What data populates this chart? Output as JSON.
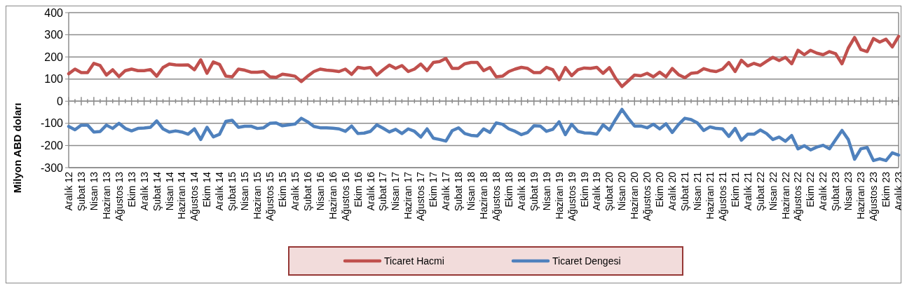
{
  "chart_data": {
    "type": "line",
    "ylabel": "Milyon ABD doları",
    "categories": [
      "Aralık 12",
      null,
      "Şubat 13",
      null,
      "Nisan 13",
      null,
      "Haziran 13",
      null,
      "Ağustos 13",
      null,
      "Ekim 13",
      null,
      "Aralık 13",
      null,
      "Şubat 14",
      null,
      "Nisan 14",
      null,
      "Haziran 14",
      null,
      "Ağustos 14",
      null,
      "Ekim 14",
      null,
      "Aralık 14",
      null,
      "Şubat 15",
      null,
      "Nisan 15",
      null,
      "Haziran 15",
      null,
      "Ağustos 15",
      null,
      "Ekim 15",
      null,
      "Aralık 15",
      null,
      "Şubat 16",
      null,
      "Nisan 16",
      null,
      "Haziran 16",
      null,
      "Ağustos 16",
      null,
      "Ekim 16",
      null,
      "Aralık 16",
      null,
      "Şubat 17",
      null,
      "Nisan 17",
      null,
      "Haziran 17",
      null,
      "Ağustos 17",
      null,
      "Ekim 17",
      null,
      "Aralık 17",
      null,
      "Şubat 18",
      null,
      "Nisan 18",
      null,
      "Haziran 18",
      null,
      "Ağustos 18",
      null,
      "Ekim 18",
      null,
      "Aralık 18",
      null,
      "Şubat 19",
      null,
      "Nisan 19",
      null,
      "Haziran 19",
      null,
      "Ağustos 19",
      null,
      "Ekim 19",
      null,
      "Aralık 19",
      null,
      "Şubat 20",
      null,
      "Nisan 20",
      null,
      "Haziran 20",
      null,
      "Ağustos 20",
      null,
      "Ekim 20",
      null,
      "Aralık 20",
      null,
      "Şubat 21",
      null,
      "Nisan 21",
      null,
      "Haziran 21",
      null,
      "Ağustos 21",
      null,
      "Ekim 21",
      null,
      "Aralık 21",
      null,
      "Şubat 22",
      null,
      "Nisan 22",
      null,
      "Haziran 22",
      null,
      "Ağustos 22",
      null,
      "Ekim 22",
      null,
      "Aralık 22",
      null,
      "Şubat 23",
      null,
      "Nisan 23",
      null,
      "Haziran 23",
      null,
      "Ağustos 23",
      null,
      "Ekim 23",
      null,
      "Aralık 23"
    ],
    "series": [
      {
        "name": "Ticaret Hacmi",
        "color": "#c0504d",
        "values": [
          124,
          145,
          129,
          129,
          171,
          161,
          118,
          142,
          111,
          138,
          145,
          138,
          138,
          143,
          113,
          152,
          168,
          164,
          163,
          164,
          142,
          187,
          126,
          177,
          166,
          113,
          110,
          145,
          140,
          131,
          131,
          134,
          110,
          108,
          122,
          118,
          113,
          89,
          113,
          134,
          145,
          140,
          138,
          134,
          145,
          121,
          153,
          148,
          152,
          118,
          142,
          163,
          148,
          161,
          134,
          145,
          168,
          138,
          175,
          179,
          193,
          148,
          148,
          169,
          175,
          175,
          138,
          152,
          110,
          113,
          134,
          145,
          153,
          148,
          129,
          129,
          153,
          142,
          97,
          152,
          115,
          142,
          150,
          148,
          153,
          126,
          152,
          103,
          66,
          92,
          118,
          115,
          126,
          110,
          131,
          110,
          148,
          120,
          106,
          126,
          129,
          147,
          138,
          134,
          145,
          175,
          134,
          185,
          159,
          171,
          161,
          180,
          198,
          184,
          198,
          169,
          230,
          210,
          230,
          217,
          210,
          224,
          214,
          169,
          240,
          288,
          233,
          224,
          283,
          267,
          280,
          245,
          293
        ]
      },
      {
        "name": "Ticaret Dengesi",
        "color": "#4f81bd",
        "values": [
          -114,
          -129,
          -108,
          -108,
          -139,
          -137,
          -108,
          -123,
          -100,
          -123,
          -134,
          -123,
          -121,
          -118,
          -89,
          -125,
          -139,
          -134,
          -139,
          -149,
          -125,
          -173,
          -118,
          -161,
          -149,
          -91,
          -86,
          -118,
          -113,
          -113,
          -123,
          -120,
          -100,
          -98,
          -111,
          -107,
          -103,
          -77,
          -93,
          -114,
          -120,
          -120,
          -122,
          -125,
          -136,
          -112,
          -146,
          -144,
          -136,
          -107,
          -122,
          -139,
          -127,
          -146,
          -125,
          -136,
          -162,
          -125,
          -167,
          -173,
          -180,
          -133,
          -120,
          -146,
          -154,
          -157,
          -125,
          -141,
          -98,
          -104,
          -125,
          -136,
          -151,
          -141,
          -111,
          -112,
          -136,
          -127,
          -93,
          -151,
          -104,
          -136,
          -143,
          -144,
          -149,
          -107,
          -130,
          -82,
          -37,
          -77,
          -112,
          -112,
          -120,
          -104,
          -125,
          -102,
          -141,
          -105,
          -77,
          -83,
          -98,
          -132,
          -116,
          -123,
          -125,
          -159,
          -123,
          -176,
          -149,
          -149,
          -130,
          -146,
          -173,
          -162,
          -181,
          -155,
          -215,
          -201,
          -220,
          -207,
          -199,
          -215,
          -173,
          -132,
          -173,
          -262,
          -215,
          -209,
          -268,
          -260,
          -268,
          -233,
          -243
        ]
      }
    ],
    "ylim": [
      -300,
      400
    ],
    "yticks": [
      -300,
      -200,
      -100,
      0,
      100,
      200,
      300,
      400
    ],
    "grid": "y",
    "legend": "bottom",
    "marker": "none",
    "line_style": "solid"
  }
}
